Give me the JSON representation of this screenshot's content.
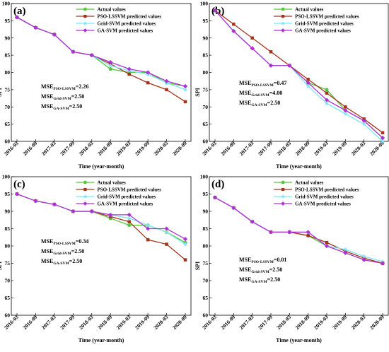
{
  "chart_data": [
    {
      "type": "line",
      "panel_label": "(a)",
      "xlabel": "Time (year-month)",
      "ylabel": "SPI",
      "ylim": [
        60,
        100
      ],
      "yticks": [
        60,
        65,
        70,
        75,
        80,
        85,
        90,
        95,
        100
      ],
      "categories": [
        "2016-03",
        "2016-09",
        "2017-03",
        "2017-09",
        "2018-03",
        "2018-09",
        "2019-03",
        "2019-09",
        "2020-03",
        "2020-09"
      ],
      "legend_position": "top-right",
      "series": [
        {
          "name": "Actual values",
          "color": "#55c53a",
          "values": [
            96,
            93,
            91,
            86,
            85,
            81,
            80,
            80,
            77,
            76
          ]
        },
        {
          "name": "PSO-LSSVM predicted values",
          "color": "#a3341b",
          "values": [
            96,
            93,
            91,
            86,
            85,
            82.5,
            79.5,
            77,
            75,
            71.5
          ]
        },
        {
          "name": "Grid-SVM predicted values",
          "color": "#7ee6f5",
          "values": [
            96,
            93,
            91,
            86,
            85,
            82,
            80.5,
            79.5,
            77,
            75
          ]
        },
        {
          "name": "GA-SVM predicted values",
          "color": "#b030d8",
          "values": [
            96,
            93,
            91,
            86,
            85,
            83,
            81,
            80,
            77.5,
            76
          ]
        }
      ],
      "mse": [
        {
          "base": "MSE",
          "sub": "PSO-LSSVM",
          "value": "=2.26"
        },
        {
          "base": "MSE",
          "sub": "Grid-SVM",
          "value": "=2.50"
        },
        {
          "base": "MSE",
          "sub": "GA-SVM",
          "value": "=2.50"
        }
      ]
    },
    {
      "type": "line",
      "panel_label": "(b)",
      "xlabel": "Time (year-month)",
      "ylabel": "SPI",
      "ylim": [
        60,
        100
      ],
      "yticks": [
        60,
        65,
        70,
        75,
        80,
        85,
        90,
        95,
        100
      ],
      "categories": [
        "2016-03",
        "2016-09",
        "2017-03",
        "2017-09",
        "2018-03",
        "2018-09",
        "2019-03",
        "2019-09",
        "2020-03",
        "2020-09"
      ],
      "legend_position": "top-right",
      "series": [
        {
          "name": "Actual values",
          "color": "#55c53a",
          "values": [
            98,
            92,
            87,
            82,
            82,
            77,
            75,
            69,
            66,
            61
          ]
        },
        {
          "name": "PSO-LSSVM predicted values",
          "color": "#a3341b",
          "values": [
            98,
            94,
            90,
            86,
            82,
            78,
            74,
            70,
            66.5,
            62.5
          ]
        },
        {
          "name": "Grid-SVM predicted values",
          "color": "#7ee6f5",
          "values": [
            98,
            92,
            87,
            82,
            82,
            76,
            71,
            68,
            65,
            60
          ]
        },
        {
          "name": "GA-SVM predicted values",
          "color": "#b030d8",
          "values": [
            98,
            92,
            87,
            82,
            82,
            77,
            72,
            69,
            66,
            61
          ]
        }
      ],
      "mse": [
        {
          "base": "MSE",
          "sub": "PSO-LSSVM",
          "value": "=0.47"
        },
        {
          "base": "MSE",
          "sub": "Grid-SVM",
          "value": "=4.00"
        },
        {
          "base": "MSE",
          "sub": "GA-SVM",
          "value": "=2.50"
        }
      ]
    },
    {
      "type": "line",
      "panel_label": "(c)",
      "xlabel": "Time (year-month)",
      "ylabel": "SPI",
      "ylim": [
        60,
        100
      ],
      "yticks": [
        60,
        65,
        70,
        75,
        80,
        85,
        90,
        95,
        100
      ],
      "categories": [
        "2016-03",
        "2016-09",
        "2017-03",
        "2017-09",
        "2018-03",
        "2018-09",
        "2019-03",
        "2019-09",
        "2020-03",
        "2020-09"
      ],
      "legend_position": "top-right",
      "series": [
        {
          "name": "Actual values",
          "color": "#55c53a",
          "values": [
            95,
            93,
            92,
            90,
            90,
            88,
            86,
            86,
            84,
            81
          ]
        },
        {
          "name": "PSO-LSSVM predicted values",
          "color": "#a3341b",
          "values": [
            95,
            93,
            92,
            90,
            90,
            88.5,
            87,
            81.8,
            80.5,
            76
          ]
        },
        {
          "name": "Grid-SVM predicted values",
          "color": "#7ee6f5",
          "values": [
            95,
            93,
            92,
            90,
            90,
            89,
            88,
            86,
            84,
            80.5
          ]
        },
        {
          "name": "GA-SVM predicted values",
          "color": "#b030d8",
          "values": [
            95,
            93,
            92,
            90,
            90,
            89,
            89,
            85,
            85,
            82
          ]
        }
      ],
      "mse": [
        {
          "base": "MSE",
          "sub": "PSO-LSSVM",
          "value": "=0.34"
        },
        {
          "base": "MSE",
          "sub": "Grid-SVM",
          "value": "=2.50"
        },
        {
          "base": "MSE",
          "sub": "GA-SVM",
          "value": "=2.50"
        }
      ]
    },
    {
      "type": "line",
      "panel_label": "(d)",
      "xlabel": "Time (year-month)",
      "ylabel": "SPI",
      "ylim": [
        60,
        100
      ],
      "yticks": [
        60,
        65,
        70,
        75,
        80,
        85,
        90,
        95,
        100
      ],
      "categories": [
        "2016-03",
        "2016-09",
        "2017-03",
        "2017-09",
        "2018-03",
        "2018-09",
        "2019-03",
        "2019-09",
        "2020-03",
        "2020-09"
      ],
      "legend_position": "top-right",
      "series": [
        {
          "name": "Actual values",
          "color": "#55c53a",
          "values": [
            94,
            91,
            87,
            84,
            84,
            83,
            80,
            78,
            76,
            75
          ]
        },
        {
          "name": "PSO-LSSVM predicted values",
          "color": "#a3341b",
          "values": [
            94,
            91,
            87,
            84,
            84,
            83,
            81,
            78.5,
            76.5,
            75
          ]
        },
        {
          "name": "Grid-SVM predicted values",
          "color": "#7ee6f5",
          "values": [
            94,
            91,
            87,
            84,
            84,
            84,
            80,
            79,
            77,
            75.5
          ]
        },
        {
          "name": "GA-SVM predicted values",
          "color": "#b030d8",
          "values": [
            94,
            91,
            87,
            84,
            84,
            84,
            80,
            78,
            76,
            75
          ]
        }
      ],
      "mse": [
        {
          "base": "MSE",
          "sub": "PSO-LSSVM",
          "value": "=0.01"
        },
        {
          "base": "MSE",
          "sub": "Grid-SVM",
          "value": "=2.50"
        },
        {
          "base": "MSE",
          "sub": "GA-SVM",
          "value": "=2.50"
        }
      ]
    }
  ]
}
